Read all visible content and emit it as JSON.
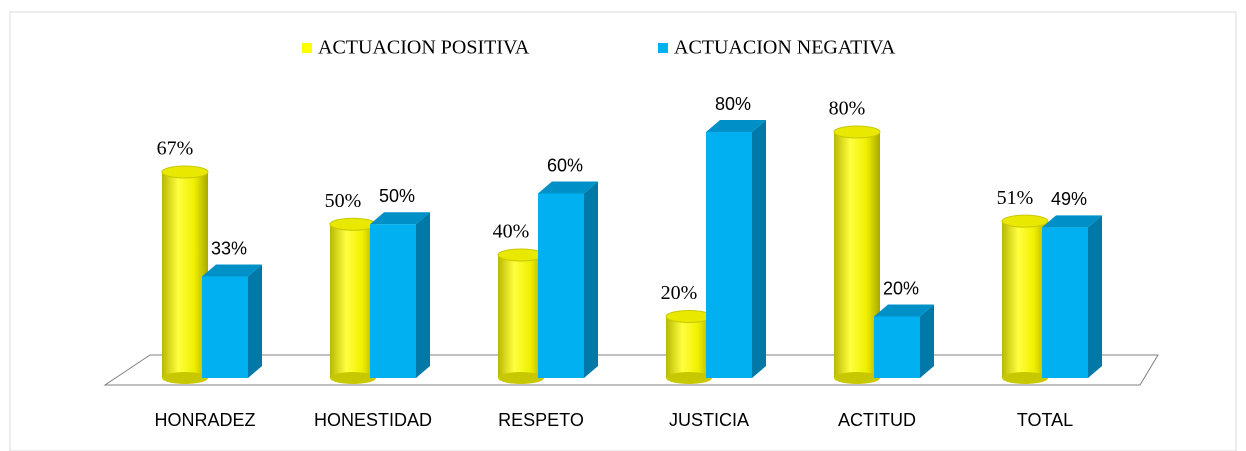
{
  "chart_data": {
    "type": "bar3d",
    "categories": [
      "HONRADEZ",
      "HONESTIDAD",
      "RESPETO",
      "JUSTICIA",
      "ACTITUD",
      "TOTAL"
    ],
    "series": [
      {
        "name": "ACTUACION POSITIVA",
        "color": "#ffff00",
        "values": [
          67,
          50,
          40,
          20,
          80,
          51
        ],
        "value_labels": [
          "67%",
          "50%",
          "40%",
          "20%",
          "80%",
          "51%"
        ]
      },
      {
        "name": "ACTUACION NEGATIVA",
        "color": "#00b0f0",
        "values": [
          33,
          50,
          60,
          80,
          20,
          49
        ],
        "value_labels": [
          "33%",
          "50%",
          "60%",
          "80%",
          "20%",
          "49%"
        ]
      }
    ]
  }
}
